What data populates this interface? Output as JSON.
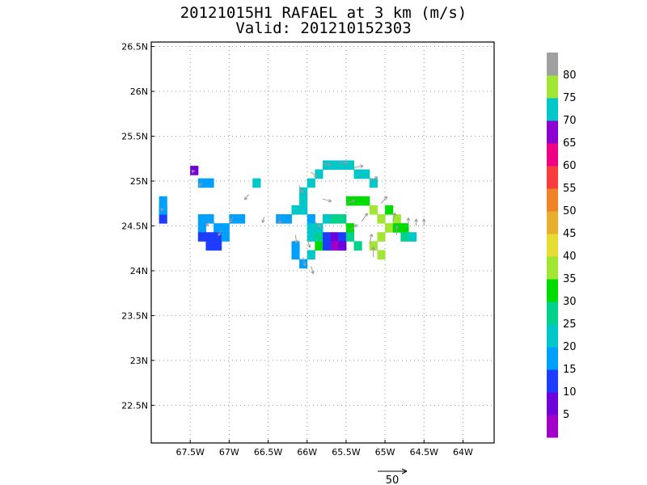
{
  "chart_data": {
    "type": "heatmap",
    "title": "20121015H1 RAFAEL at 3 km (m/s)",
    "subtitle": "Valid: 201210152303",
    "x_axis": {
      "ticks": [
        -67.5,
        -67,
        -66.5,
        -66,
        -65.5,
        -65,
        -64.5,
        -64
      ],
      "tick_labels": [
        "67.5W",
        "67W",
        "66.5W",
        "66W",
        "65.5W",
        "65W",
        "64.5W",
        "64W"
      ],
      "range": [
        -68.0,
        -63.6
      ]
    },
    "y_axis": {
      "ticks": [
        22.5,
        23,
        23.5,
        24,
        24.5,
        25,
        25.5,
        26,
        26.5
      ],
      "tick_labels": [
        "22.5N",
        "23N",
        "23.5N",
        "24N",
        "24.5N",
        "25N",
        "25.5N",
        "26N",
        "26.5N"
      ],
      "range": [
        22.08,
        26.55
      ]
    },
    "grid": true,
    "colorbar": {
      "labels": [
        "5",
        "10",
        "15",
        "20",
        "25",
        "30",
        "35",
        "40",
        "45",
        "50",
        "55",
        "60",
        "65",
        "70",
        "75",
        "80"
      ],
      "colors": [
        "#a000c8",
        "#6e00dc",
        "#1e3cff",
        "#00a0ff",
        "#00c8c8",
        "#00d28c",
        "#00dc00",
        "#a0e632",
        "#e6dc32",
        "#e6af2d",
        "#f08228",
        "#fa3c3c",
        "#f00082",
        "#8c00d2",
        "#00c8c8",
        "#a0e632",
        "#a0a0a0"
      ]
    },
    "wind_field": {
      "cells_note": "lon/lat centers with wind speed (m/s)",
      "cells": [
        [
          -67.85,
          24.78,
          20
        ],
        [
          -67.85,
          24.68,
          20
        ],
        [
          -67.85,
          24.58,
          15
        ],
        [
          -67.85,
          24.68,
          20
        ],
        [
          -67.45,
          25.12,
          10
        ],
        [
          -67.35,
          24.98,
          20
        ],
        [
          -67.25,
          24.98,
          20
        ],
        [
          -67.35,
          24.58,
          20
        ],
        [
          -67.25,
          24.58,
          20
        ],
        [
          -67.35,
          24.48,
          20
        ],
        [
          -67.15,
          24.48,
          20
        ],
        [
          -67.05,
          24.48,
          20
        ],
        [
          -66.95,
          24.58,
          20
        ],
        [
          -66.85,
          24.58,
          20
        ],
        [
          -67.35,
          24.38,
          15
        ],
        [
          -67.25,
          24.38,
          15
        ],
        [
          -67.15,
          24.38,
          15
        ],
        [
          -67.05,
          24.38,
          20
        ],
        [
          -67.25,
          24.28,
          15
        ],
        [
          -67.15,
          24.28,
          15
        ],
        [
          -66.65,
          24.98,
          25
        ],
        [
          -66.35,
          24.58,
          20
        ],
        [
          -66.25,
          24.58,
          20
        ],
        [
          -66.15,
          24.68,
          25
        ],
        [
          -66.05,
          24.68,
          25
        ],
        [
          -66.05,
          24.78,
          25
        ],
        [
          -66.05,
          24.88,
          25
        ],
        [
          -65.95,
          24.98,
          25
        ],
        [
          -65.85,
          25.08,
          25
        ],
        [
          -65.75,
          25.18,
          25
        ],
        [
          -65.65,
          25.18,
          25
        ],
        [
          -65.55,
          25.18,
          25
        ],
        [
          -65.45,
          25.18,
          25
        ],
        [
          -65.35,
          25.08,
          25
        ],
        [
          -65.25,
          25.08,
          25
        ],
        [
          -65.15,
          24.98,
          25
        ],
        [
          -65.95,
          24.58,
          20
        ],
        [
          -65.95,
          24.48,
          25
        ],
        [
          -65.95,
          24.38,
          25
        ],
        [
          -66.15,
          24.28,
          20
        ],
        [
          -66.15,
          24.18,
          20
        ],
        [
          -66.05,
          24.08,
          20
        ],
        [
          -65.95,
          24.18,
          25
        ],
        [
          -65.85,
          24.28,
          35
        ],
        [
          -65.85,
          24.38,
          30
        ],
        [
          -65.85,
          24.48,
          25
        ],
        [
          -65.75,
          24.38,
          15
        ],
        [
          -65.65,
          24.38,
          10
        ],
        [
          -65.55,
          24.38,
          15
        ],
        [
          -65.65,
          24.28,
          5
        ],
        [
          -65.55,
          24.28,
          10
        ],
        [
          -65.75,
          24.28,
          15
        ],
        [
          -65.75,
          24.58,
          25
        ],
        [
          -65.65,
          24.58,
          30
        ],
        [
          -65.55,
          24.58,
          30
        ],
        [
          -65.45,
          24.48,
          35
        ],
        [
          -65.45,
          24.38,
          30
        ],
        [
          -65.35,
          24.28,
          30
        ],
        [
          -65.45,
          24.78,
          35
        ],
        [
          -65.35,
          24.78,
          35
        ],
        [
          -65.25,
          24.78,
          35
        ],
        [
          -65.15,
          24.68,
          40
        ],
        [
          -65.05,
          24.58,
          40
        ],
        [
          -64.95,
          24.48,
          40
        ],
        [
          -65.05,
          24.38,
          40
        ],
        [
          -65.15,
          24.28,
          40
        ],
        [
          -65.05,
          24.18,
          40
        ],
        [
          -64.95,
          24.68,
          35
        ],
        [
          -64.85,
          24.58,
          40
        ],
        [
          -64.85,
          24.48,
          35
        ],
        [
          -64.75,
          24.48,
          35
        ],
        [
          -64.75,
          24.38,
          30
        ],
        [
          -64.65,
          24.38,
          25
        ]
      ],
      "vectors_note": "lon/lat origins with u, v components (m/s)",
      "vectors": [
        [
          -67.85,
          24.7,
          -3,
          -5
        ],
        [
          -67.45,
          25.1,
          -4,
          3
        ],
        [
          -67.35,
          24.98,
          -5,
          -6
        ],
        [
          -67.25,
          24.55,
          -6,
          -8
        ],
        [
          -67.1,
          24.45,
          -5,
          -9
        ],
        [
          -66.95,
          24.6,
          -6,
          -9
        ],
        [
          -66.75,
          24.85,
          -7,
          -9
        ],
        [
          -66.55,
          24.6,
          -3,
          -10
        ],
        [
          -66.35,
          24.6,
          0,
          -12
        ],
        [
          -66.15,
          24.4,
          2,
          -14
        ],
        [
          -66.05,
          24.15,
          3,
          -15
        ],
        [
          -65.95,
          24.05,
          4,
          -13
        ],
        [
          -66.1,
          24.95,
          6,
          -13
        ],
        [
          -65.95,
          25.1,
          10,
          -8
        ],
        [
          -65.8,
          25.2,
          14,
          -3
        ],
        [
          -65.6,
          25.2,
          16,
          0
        ],
        [
          -65.4,
          25.15,
          16,
          3
        ],
        [
          -65.2,
          25.0,
          14,
          7
        ],
        [
          -65.05,
          24.75,
          10,
          12
        ],
        [
          -64.9,
          24.55,
          4,
          15
        ],
        [
          -64.85,
          24.4,
          0,
          16
        ],
        [
          -64.7,
          24.5,
          0,
          14
        ],
        [
          -64.6,
          24.5,
          0,
          12
        ],
        [
          -64.5,
          24.5,
          0,
          12
        ],
        [
          -65.8,
          24.8,
          15,
          -4
        ],
        [
          -65.5,
          24.75,
          15,
          5
        ],
        [
          -65.3,
          24.55,
          10,
          14
        ],
        [
          -65.2,
          24.3,
          4,
          17
        ],
        [
          -65.15,
          24.15,
          0,
          18
        ],
        [
          -65.9,
          24.55,
          10,
          -10
        ],
        [
          -66.0,
          24.35,
          5,
          -14
        ],
        [
          -65.45,
          24.45,
          12,
          10
        ]
      ]
    },
    "scale_arrow": {
      "label": "50",
      "value": 50
    }
  }
}
